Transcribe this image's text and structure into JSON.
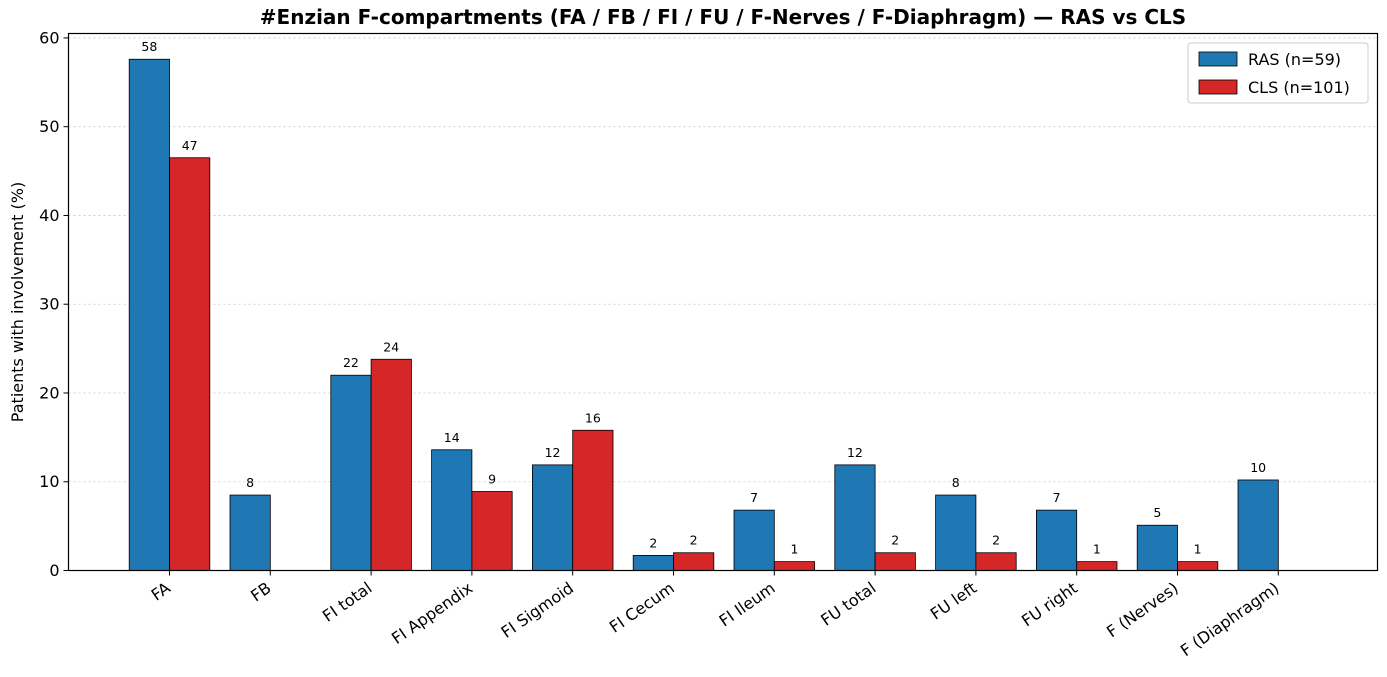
{
  "chart_data": {
    "type": "bar",
    "title": "#Enzian F-compartments (FA / FB / FI / FU / F-Nerves / F-Diaphragm) — RAS vs CLS",
    "xlabel": "",
    "ylabel": "Patients with involvement (%)",
    "ylim": [
      0,
      60.5
    ],
    "yticks": [
      "0",
      "10",
      "20",
      "30",
      "40",
      "50",
      "60"
    ],
    "grid": "horizontal dotted",
    "legend_position": "top-right",
    "categories": [
      "FA",
      "FB",
      "FI total",
      "FI Appendix",
      "FI Sigmoid",
      "FI Cecum",
      "FI Ileum",
      "FU total",
      "FU left",
      "FU right",
      "F (Nerves)",
      "F (Diaphragm)"
    ],
    "series": [
      {
        "name": "RAS (n=59)",
        "color": "#1f77b4",
        "values": [
          57.6,
          8.5,
          22.0,
          13.6,
          11.9,
          1.7,
          6.8,
          11.9,
          8.5,
          6.8,
          5.1,
          10.2
        ],
        "labels": [
          "58",
          "8",
          "22",
          "14",
          "12",
          "2",
          "7",
          "12",
          "8",
          "7",
          "5",
          "10"
        ]
      },
      {
        "name": "CLS (n=101)",
        "color": "#d62728",
        "values": [
          46.5,
          0,
          23.8,
          8.9,
          15.8,
          2.0,
          1.0,
          2.0,
          2.0,
          1.0,
          1.0,
          0
        ],
        "labels": [
          "47",
          "",
          "24",
          "9",
          "16",
          "2",
          "1",
          "2",
          "2",
          "1",
          "1",
          ""
        ]
      }
    ]
  }
}
